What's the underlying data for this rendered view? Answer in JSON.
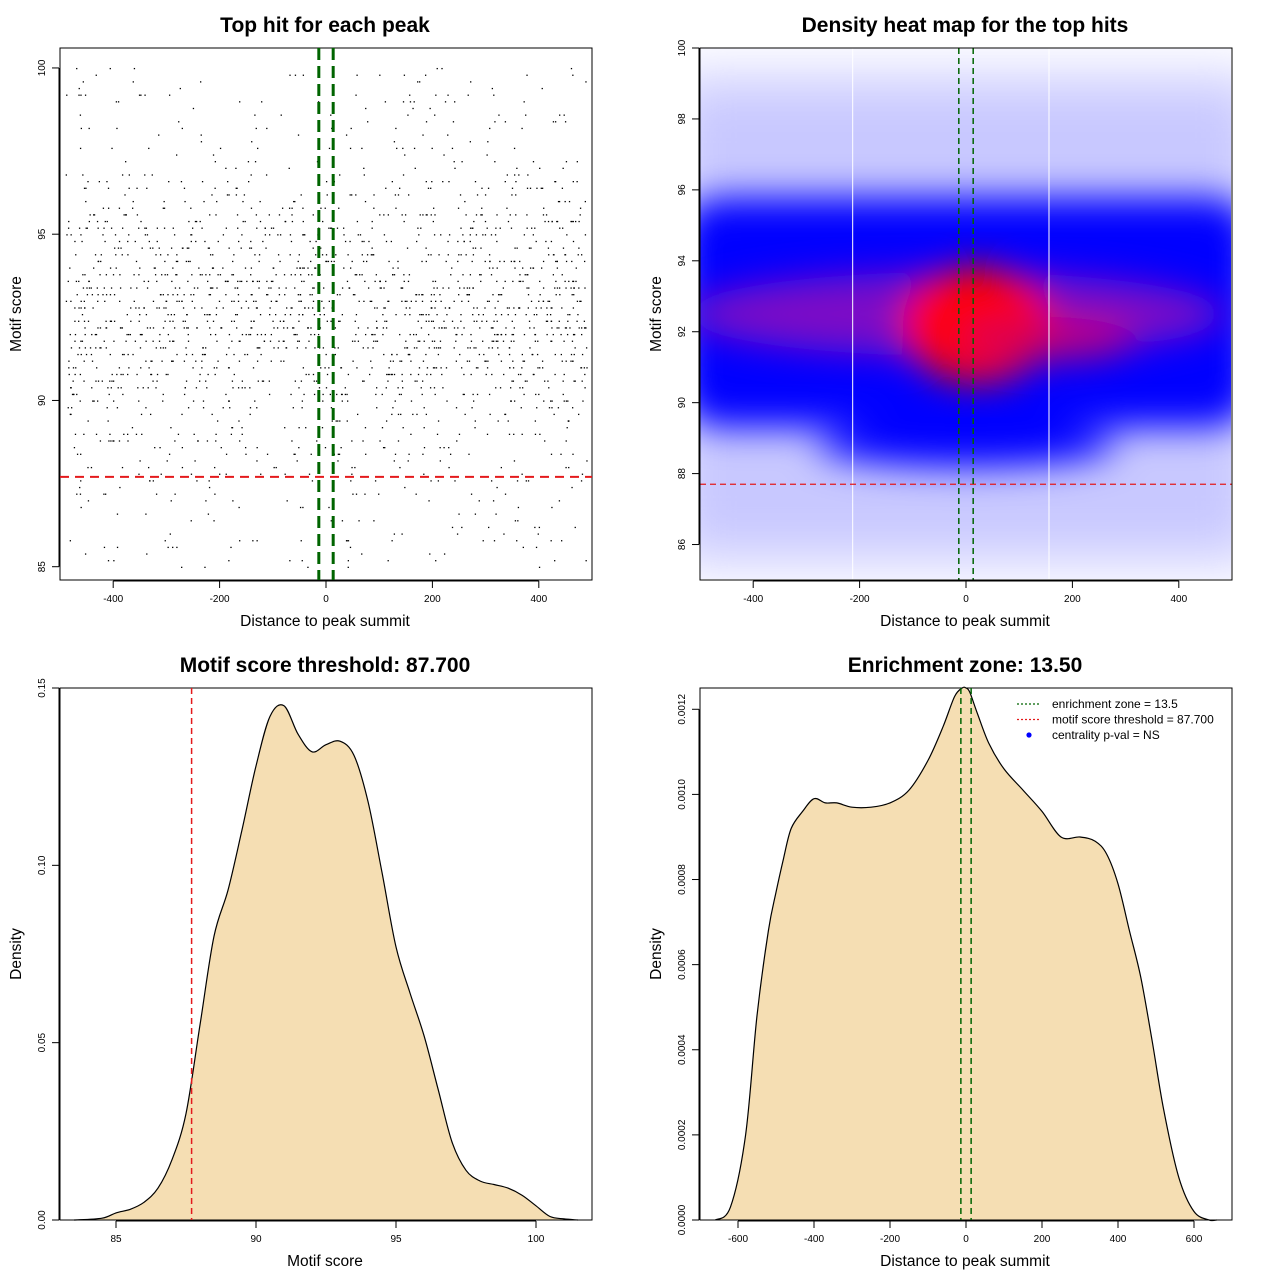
{
  "chart_data": [
    {
      "id": "scatter",
      "type": "scatter",
      "title": "Top hit for each peak",
      "xlabel": "Distance to peak summit",
      "ylabel": "Motif score",
      "xlim": [
        -500,
        500
      ],
      "ylim": [
        84.6,
        100.6
      ],
      "xticks": [
        "-400",
        "-200",
        "0",
        "200",
        "400"
      ],
      "yticks": [
        "85",
        "90",
        "95",
        "100"
      ],
      "threshold": 87.7,
      "enrichment_zone": [
        -13.5,
        13.5
      ],
      "point_color": "#000000",
      "threshold_color": "#e41a1c",
      "zone_color": "#006400",
      "points_note": "~2000 points scattered uniformly over x in [-490, 490], y concentrated 88-97 with sparse points up to 100 and down to 85"
    },
    {
      "id": "heatmap",
      "type": "heatmap",
      "title": "Density heat map for the top hits",
      "xlabel": "Distance to peak summit",
      "ylabel": "Motif score",
      "xlim": [
        -500,
        500
      ],
      "ylim": [
        85,
        100
      ],
      "xticks": [
        "-400",
        "-200",
        "0",
        "200",
        "400"
      ],
      "yticks": [
        "86",
        "88",
        "90",
        "92",
        "94",
        "96",
        "98",
        "100"
      ],
      "threshold": 87.7,
      "enrichment_zone": [
        -13.5,
        13.5
      ],
      "white_lines_x": [
        -213,
        156
      ],
      "hotspot": {
        "x": 20,
        "y": 92.2
      },
      "colors": [
        "#ffffff",
        "#0000ff",
        "#ff0000"
      ],
      "grid": false
    },
    {
      "id": "score-density",
      "type": "area",
      "title": "Motif score threshold: 87.700",
      "xlabel": "Motif score",
      "ylabel": "Density",
      "xlim": [
        83,
        102
      ],
      "ylim": [
        0,
        0.15
      ],
      "xticks": [
        "85",
        "90",
        "95",
        "100"
      ],
      "yticks": [
        "0.00",
        "0.05",
        "0.10",
        "0.15"
      ],
      "x": [
        83.5,
        84.5,
        85,
        85.5,
        86,
        86.5,
        87,
        87.5,
        88,
        88.5,
        89,
        89.5,
        90,
        90.5,
        91,
        91.5,
        92,
        92.5,
        93,
        93.5,
        94,
        94.5,
        95,
        95.5,
        96,
        96.5,
        97,
        97.5,
        98,
        98.5,
        99,
        99.5,
        100,
        100.5,
        101,
        101.5
      ],
      "y": [
        0.0,
        0.0005,
        0.002,
        0.003,
        0.005,
        0.009,
        0.017,
        0.03,
        0.055,
        0.08,
        0.093,
        0.11,
        0.128,
        0.142,
        0.145,
        0.137,
        0.132,
        0.134,
        0.135,
        0.131,
        0.118,
        0.098,
        0.077,
        0.064,
        0.052,
        0.037,
        0.022,
        0.014,
        0.011,
        0.01,
        0.009,
        0.007,
        0.004,
        0.001,
        0.0003,
        0.0
      ],
      "fill_color": "#f5deb3",
      "threshold": 87.7,
      "threshold_color": "#e41a1c"
    },
    {
      "id": "distance-density",
      "type": "area",
      "title": "Enrichment zone: 13.50",
      "xlabel": "Distance to peak summit",
      "ylabel": "Density",
      "xlim": [
        -700,
        700
      ],
      "ylim": [
        0,
        0.00125
      ],
      "xticks": [
        "-600",
        "-400",
        "-200",
        "0",
        "200",
        "400",
        "600"
      ],
      "yticks": [
        "0.0000",
        "0.0002",
        "0.0004",
        "0.0006",
        "0.0008",
        "0.0010",
        "0.0012"
      ],
      "x": [
        -660,
        -620,
        -580,
        -550,
        -520,
        -500,
        -480,
        -460,
        -430,
        -400,
        -370,
        -340,
        -300,
        -250,
        -200,
        -150,
        -100,
        -60,
        -30,
        -10,
        0,
        10,
        30,
        60,
        100,
        150,
        200,
        250,
        300,
        340,
        370,
        400,
        430,
        460,
        490,
        520,
        560,
        600,
        640,
        660
      ],
      "y": [
        0.0,
        3e-05,
        0.0002,
        0.00048,
        0.00068,
        0.00077,
        0.00085,
        0.00092,
        0.00096,
        0.00099,
        0.00098,
        0.00098,
        0.00097,
        0.00097,
        0.00098,
        0.00101,
        0.00108,
        0.00116,
        0.00123,
        0.00125,
        0.00125,
        0.00124,
        0.00119,
        0.00112,
        0.00106,
        0.00101,
        0.00096,
        0.0009,
        0.0009,
        0.00089,
        0.00086,
        0.00079,
        0.00068,
        0.00057,
        0.00042,
        0.00026,
        0.0001,
        2e-05,
        0.0,
        0.0
      ],
      "fill_color": "#f5deb3",
      "enrichment_zone": [
        -13.5,
        13.5
      ],
      "zone_color": "#006400",
      "legend": [
        {
          "label": "enrichment zone = 13.5",
          "color": "#006400",
          "style": "dotted"
        },
        {
          "label": "motif score threshold = 87.700",
          "color": "#e41a1c",
          "style": "dotted"
        },
        {
          "label": "centrality p-val = NS",
          "color": "#0000ff",
          "style": "point"
        }
      ],
      "legend_placement": "top-right"
    }
  ]
}
